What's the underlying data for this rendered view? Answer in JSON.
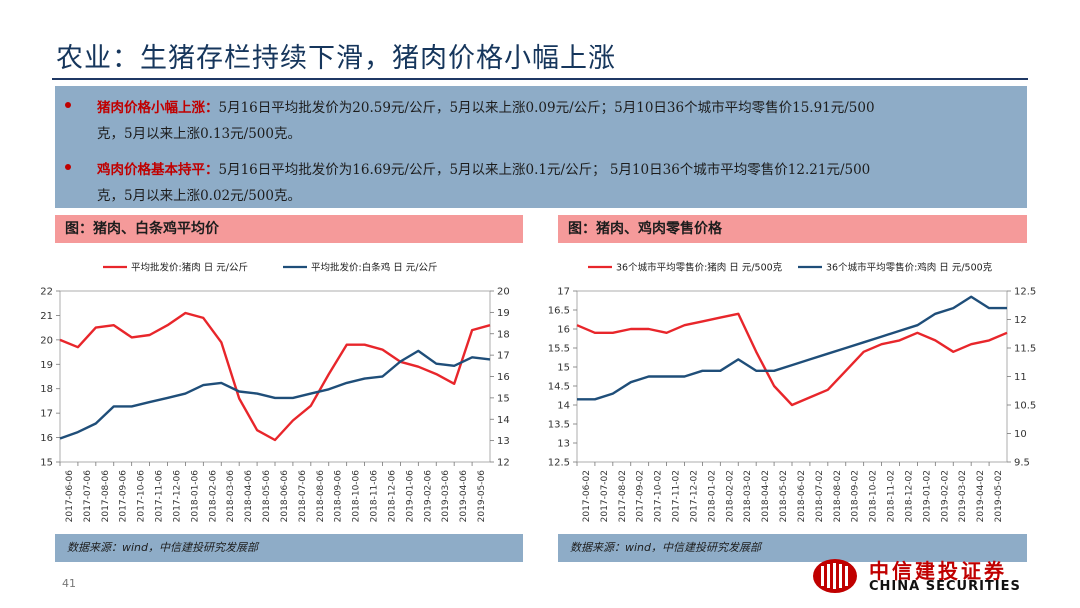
{
  "page": {
    "title": "农业：生猪存栏持续下滑，猪肉价格小幅上涨",
    "page_number": "41"
  },
  "summary": {
    "bullets": [
      {
        "key": "猪肉价格小幅上涨：",
        "line1": "5月16日平均批发价为20.59元/公斤，5月以来上涨0.09元/公斤；5月10日36个城市平均零售价15.91元/500",
        "line2": "克，5月以来上涨0.13元/500克。"
      },
      {
        "key": "鸡肉价格基本持平：",
        "line1": "5月16日平均批发价为16.69元/公斤，5月以来上涨0.1元/公斤； 5月10日36个城市平均零售价12.21元/500",
        "line2": "克，5月以来上涨0.02元/500克。"
      }
    ],
    "colors": {
      "key_text": "#c00000",
      "panel_bg": "#8eacc7"
    }
  },
  "source_text": "数据来源：wind，中信建投研究发展部",
  "logo": {
    "cn": "中信建投证券",
    "en": "CHINA SECURITIES"
  },
  "chart_data": [
    {
      "type": "line",
      "title": "图：猪肉、白条鸡平均价",
      "x_ticks": [
        "2017-06-06",
        "2017-07-06",
        "2017-08-06",
        "2017-09-06",
        "2017-10-06",
        "2017-11-06",
        "2017-12-06",
        "2018-01-06",
        "2018-02-06",
        "2018-03-06",
        "2018-04-06",
        "2018-05-06",
        "2018-06-06",
        "2018-07-06",
        "2018-08-06",
        "2018-09-06",
        "2018-10-06",
        "2018-11-06",
        "2018-12-06",
        "2019-01-06",
        "2019-02-06",
        "2019-03-06",
        "2019-04-06",
        "2019-05-06"
      ],
      "y_left": {
        "lim": [
          15,
          22
        ],
        "ticks": [
          15,
          16,
          17,
          18,
          19,
          20,
          21,
          22
        ]
      },
      "y_right": {
        "lim": [
          12,
          20
        ],
        "ticks": [
          12,
          13,
          14,
          15,
          16,
          17,
          18,
          19,
          20
        ]
      },
      "legend_position": "top",
      "series": [
        {
          "name": "平均批发价:猪肉 日 元/公斤",
          "axis": "left",
          "color": "#e8262b",
          "values": [
            20.0,
            19.7,
            20.5,
            20.6,
            20.1,
            20.2,
            20.6,
            21.1,
            20.9,
            19.9,
            17.6,
            16.3,
            15.9,
            16.7,
            17.3,
            18.6,
            19.8,
            19.8,
            19.6,
            19.1,
            18.9,
            18.6,
            18.2,
            20.4,
            20.6
          ]
        },
        {
          "name": "平均批发价:白条鸡 日 元/公斤",
          "axis": "right",
          "color": "#1f4e79",
          "values": [
            13.1,
            13.4,
            13.8,
            14.6,
            14.6,
            14.8,
            15.0,
            15.2,
            15.6,
            15.7,
            15.3,
            15.2,
            15.0,
            15.0,
            15.2,
            15.4,
            15.7,
            15.9,
            16.0,
            16.7,
            17.2,
            16.6,
            16.5,
            16.9,
            16.8
          ]
        }
      ]
    },
    {
      "type": "line",
      "title": "图：猪肉、鸡肉零售价格",
      "x_ticks": [
        "2017-06-02",
        "2017-07-02",
        "2017-08-02",
        "2017-09-02",
        "2017-10-02",
        "2017-11-02",
        "2017-12-02",
        "2018-01-02",
        "2018-02-02",
        "2018-03-02",
        "2018-04-02",
        "2018-05-02",
        "2018-06-02",
        "2018-07-02",
        "2018-08-02",
        "2018-09-02",
        "2018-10-02",
        "2018-11-02",
        "2018-12-02",
        "2019-01-02",
        "2019-02-02",
        "2019-03-02",
        "2019-04-02",
        "2019-05-02"
      ],
      "y_left": {
        "lim": [
          12.5,
          17
        ],
        "ticks": [
          "12.5",
          "13",
          "13.5",
          "14",
          "14.5",
          "15",
          "15.5",
          "16",
          "16.5",
          "17"
        ]
      },
      "y_right": {
        "lim": [
          9.5,
          12.5
        ],
        "ticks": [
          "9.5",
          "10",
          "10.5",
          "11",
          "11.5",
          "12",
          "12.5"
        ]
      },
      "legend_position": "top",
      "series": [
        {
          "name": "36个城市平均零售价:猪肉 日 元/500克",
          "axis": "left",
          "color": "#e8262b",
          "values": [
            16.1,
            15.9,
            15.9,
            16.0,
            16.0,
            15.9,
            16.1,
            16.2,
            16.3,
            16.4,
            15.4,
            14.5,
            14.0,
            14.2,
            14.4,
            14.9,
            15.4,
            15.6,
            15.7,
            15.9,
            15.7,
            15.4,
            15.6,
            15.7,
            15.9
          ]
        },
        {
          "name": "36个城市平均零售价:鸡肉 日 元/500克",
          "axis": "right",
          "color": "#1f4e79",
          "values": [
            10.6,
            10.6,
            10.7,
            10.9,
            11.0,
            11.0,
            11.0,
            11.1,
            11.1,
            11.3,
            11.1,
            11.1,
            11.2,
            11.3,
            11.4,
            11.5,
            11.6,
            11.7,
            11.8,
            11.9,
            12.1,
            12.2,
            12.4,
            12.2,
            12.2
          ]
        }
      ]
    }
  ]
}
